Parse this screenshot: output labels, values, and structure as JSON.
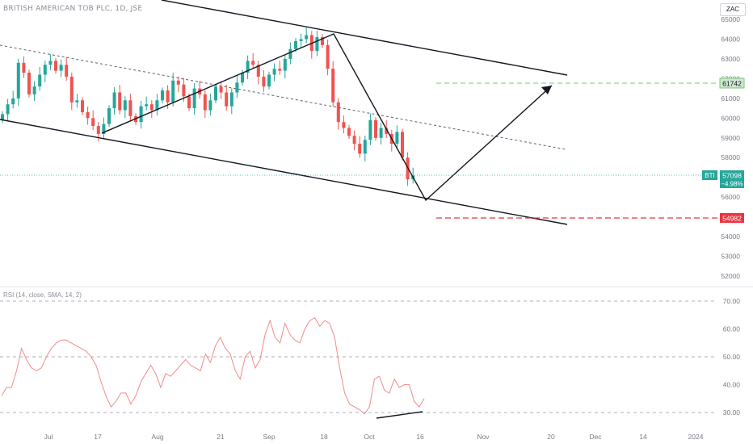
{
  "header": {
    "title": "BRITISH AMERICAN TOB PLC, 1D, JSE"
  },
  "currency_button": "ZAC",
  "rsi": {
    "label": "RSI (14, close, SMA, 14, 2)"
  },
  "colors": {
    "up": "#26a69a",
    "down": "#ef5350",
    "rsi": "#f28b8b",
    "target": "#7cc47c",
    "stop": "#ef3340"
  },
  "price_tags": {
    "target": "61742",
    "stop": "54982",
    "symbol": "BTI",
    "last": "57098",
    "change": "−4.98%"
  },
  "chart_data": [
    {
      "type": "candlestick",
      "title": "BRITISH AMERICAN TOB PLC, 1D, JSE",
      "y_ticks": [
        52000,
        53000,
        54000,
        55000,
        56000,
        57000,
        58000,
        59000,
        60000,
        61000,
        62000,
        63000,
        64000,
        65000
      ],
      "ylim": [
        51600,
        65500
      ],
      "x_ticks": [
        "Jul",
        "17",
        "Aug",
        "21",
        "Sep",
        "18",
        "Oct",
        "16",
        "Nov",
        "20",
        "Dec",
        "14",
        "2024"
      ],
      "close": [
        60200,
        60700,
        61000,
        62800,
        62300,
        61200,
        61600,
        62200,
        62700,
        62900,
        62400,
        62700,
        62100,
        60800,
        60900,
        60300,
        60000,
        59600,
        59200,
        59700,
        60500,
        61300,
        60400,
        60900,
        60100,
        59800,
        60600,
        60700,
        60400,
        60900,
        61400,
        60800,
        61900,
        61700,
        61100,
        60500,
        61500,
        61200,
        60400,
        60900,
        61600,
        61300,
        60600,
        61300,
        61800,
        62300,
        62900,
        62700,
        62100,
        61600,
        62200,
        62500,
        62400,
        63000,
        63500,
        63900,
        64000,
        64200,
        63400,
        64100,
        63700,
        62500,
        60800,
        59800,
        59500,
        59100,
        58700,
        58200,
        58900,
        59900,
        59000,
        59500,
        59200,
        58700,
        59300,
        58000,
        56900,
        57098
      ],
      "target_level": 61742,
      "stop_level": 54982,
      "last_price": 57098,
      "change_percent": -4.98
    },
    {
      "type": "line",
      "name": "RSI (14, close, SMA, 14, 2)",
      "y_ticks": [
        30,
        40,
        50,
        60,
        70
      ],
      "ylim": [
        26.5,
        73
      ],
      "dashed_levels": [
        70,
        50,
        30
      ],
      "values": [
        36,
        39,
        39,
        45,
        53,
        49,
        46,
        45,
        46,
        50,
        53,
        55,
        56,
        56,
        55,
        54,
        53,
        52,
        50,
        47,
        41,
        36,
        32,
        34,
        37,
        37,
        33,
        36,
        41,
        44,
        47,
        44,
        39,
        44,
        43,
        45,
        47,
        49,
        47,
        46,
        45,
        51,
        48,
        54,
        57,
        53,
        51,
        45,
        42,
        50,
        52,
        46,
        49,
        58,
        63,
        57,
        55,
        62,
        58,
        56,
        55,
        60,
        63,
        64,
        61,
        63,
        62,
        57,
        46,
        37,
        33,
        32,
        31,
        29.5,
        32,
        42,
        43,
        38,
        37,
        42,
        39,
        40,
        40,
        34,
        32,
        35
      ]
    }
  ]
}
